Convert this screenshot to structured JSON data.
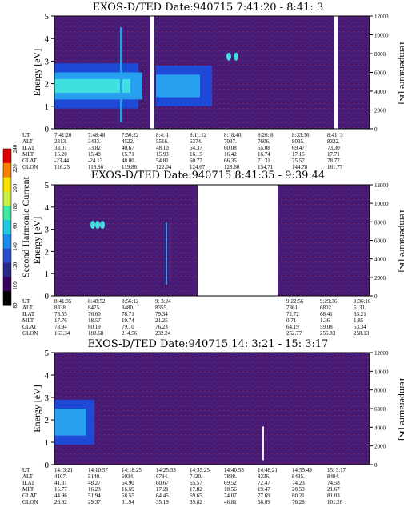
{
  "chart_data": [
    {
      "type": "heatmap",
      "title": "EXOS-D/TED   Date:940715  7:41:20 - 8:41: 3",
      "ylabel": "Energy [eV]",
      "y2label": "Temperature [K]",
      "ylim": [
        0,
        5
      ],
      "y_ticks": [
        "0",
        "1",
        "2",
        "3",
        "4",
        "5"
      ],
      "y2lim": [
        0,
        12000
      ],
      "y2_ticks": [
        "0",
        "2000",
        "4000",
        "6000",
        "8000",
        "10000",
        "12000"
      ],
      "table_labels": [
        "UT",
        "ALT",
        "ILAT",
        "MLT",
        "GLAT",
        "GLON"
      ],
      "columns": [
        {
          "UT": "7:41:20",
          "ALT": "2313.",
          "ILAT": "33.01",
          "MLT": "15.20",
          "GLAT": "-23.44",
          "GLON": "116.23"
        },
        {
          "UT": "7:48:48",
          "ALT": "3433.",
          "ILAT": "33.82",
          "MLT": "15.48",
          "GLAT": "-24.13",
          "GLON": "118.86"
        },
        {
          "UT": "7:56:22",
          "ALT": "4522.",
          "ILAT": "40.67",
          "MLT": "15.71",
          "GLAT": "48.00",
          "GLON": "119.86"
        },
        {
          "UT": "8:4: 1",
          "ALT": "5516.",
          "ILAT": "48.10",
          "MLT": "15.93",
          "GLAT": "54.81",
          "GLON": "122.04"
        },
        {
          "UT": "8:11:12",
          "ALT": "6374.",
          "ILAT": "54.37",
          "MLT": "16.15",
          "GLAT": "60.77",
          "GLON": "124.67"
        },
        {
          "UT": "8:18:40",
          "ALT": "7037.",
          "ILAT": "60.08",
          "MLT": "16.42",
          "GLAT": "66.35",
          "GLON": "128.60"
        },
        {
          "UT": "8:26: 8",
          "ALT": "7606.",
          "ILAT": "65.08",
          "MLT": "16.74",
          "GLAT": "71.31",
          "GLON": "134.71"
        },
        {
          "UT": "8:33:36",
          "ALT": "8035.",
          "ILAT": "69.47",
          "MLT": "17.15",
          "GLAT": "75.57",
          "GLON": "144.78"
        },
        {
          "UT": "8:41: 3",
          "ALT": "8322.",
          "ILAT": "73.30",
          "MLT": "17.71",
          "GLAT": "78.77",
          "GLON": "161.77"
        }
      ]
    },
    {
      "type": "heatmap",
      "title": "EXOS-D/TED   Date:940715  8:41:35 - 9:39:44",
      "ylabel": "Energy [eV]",
      "y2label": "Temperature [K]",
      "ylim": [
        0,
        5
      ],
      "y_ticks": [
        "0",
        "1",
        "2",
        "3",
        "4",
        "5"
      ],
      "y2lim": [
        0,
        12000
      ],
      "y2_ticks": [
        "0",
        "2000",
        "4000",
        "6000",
        "8000",
        "10000",
        "12000"
      ],
      "table_labels": [
        "UT",
        "ALT",
        "ILAT",
        "MLT",
        "GLAT",
        "GLON"
      ],
      "columns": [
        {
          "UT": "8:41:35",
          "ALT": "8338.",
          "ILAT": "73.55",
          "MLT": "17.76",
          "GLAT": "78.94",
          "GLON": "163.34"
        },
        {
          "UT": "8:48:52",
          "ALT": "8475.",
          "ILAT": "76.60",
          "MLT": "18.57",
          "GLAT": "80.19",
          "GLON": "188.68"
        },
        {
          "UT": "8:56:12",
          "ALT": "8480.",
          "ILAT": "78.71",
          "MLT": "19.74",
          "GLAT": "79.10",
          "GLON": "214.56"
        },
        {
          "UT": "9: 3:24",
          "ALT": "8355.",
          "ILAT": "79.34",
          "MLT": "21.25",
          "GLAT": "76.23",
          "GLON": "232.24"
        },
        {
          "UT": "9:22:56",
          "ALT": "7361.",
          "ILAT": "72.72",
          "MLT": "0.71",
          "GLAT": "64.19",
          "GLON": "252.77"
        },
        {
          "UT": "9:29:36",
          "ALT": "6802.",
          "ILAT": "68.41",
          "MLT": "1.36",
          "GLAT": "59.08",
          "GLON": "255.83"
        },
        {
          "UT": "9:36:16",
          "ALT": "6131.",
          "ILAT": "63.21",
          "MLT": "1.85",
          "GLAT": "53.34",
          "GLON": "258.13"
        }
      ]
    },
    {
      "type": "heatmap",
      "title": "EXOS-D/TED   Date:940715  14: 3:21 - 15: 3:17",
      "ylabel": "Energy [eV]",
      "y2label": "Temperature [K]",
      "ylim": [
        0,
        5
      ],
      "y_ticks": [
        "0",
        "1",
        "2",
        "3",
        "4",
        "5"
      ],
      "y2lim": [
        0,
        12000
      ],
      "y2_ticks": [
        "0",
        "2000",
        "4000",
        "6000",
        "8000",
        "10000",
        "12000"
      ],
      "table_labels": [
        "UT",
        "ALT",
        "ILAT",
        "MLT",
        "GLAT",
        "GLON"
      ],
      "columns": [
        {
          "UT": "14: 3:21",
          "ALT": "4107.",
          "ILAT": "41.31",
          "MLT": "15.77",
          "GLAT": "44.96",
          "GLON": "26.92"
        },
        {
          "UT": "14:10:57",
          "ALT": "5140.",
          "ILAT": "48.27",
          "MLT": "16.23",
          "GLAT": "51.94",
          "GLON": "29.37"
        },
        {
          "UT": "14:18:25",
          "ALT": "6034.",
          "ILAT": "54.90",
          "MLT": "16.69",
          "GLAT": "58.55",
          "GLON": "31.94"
        },
        {
          "UT": "14:25:53",
          "ALT": "6794.",
          "ILAT": "60.67",
          "MLT": "17.21",
          "GLAT": "64.45",
          "GLON": "35.19"
        },
        {
          "UT": "14:33:25",
          "ALT": "7420.",
          "ILAT": "65.57",
          "MLT": "17.82",
          "GLAT": "69.65",
          "GLON": "39.82"
        },
        {
          "UT": "14:40:53",
          "ALT": "7898.",
          "ILAT": "69.52",
          "MLT": "18.56",
          "GLAT": "74.07",
          "GLON": "46.81"
        },
        {
          "UT": "14:48:21",
          "ALT": "8236.",
          "ILAT": "72.47",
          "MLT": "19.47",
          "GLAT": "77.69",
          "GLON": "58.09"
        },
        {
          "UT": "14:55:49",
          "ALT": "8435.",
          "ILAT": "74.23",
          "MLT": "20.53",
          "GLAT": "80.21",
          "GLON": "76.28"
        },
        {
          "UT": "15: 3:17",
          "ALT": "8494.",
          "ILAT": "74.58",
          "MLT": "21.67",
          "GLAT": "81.03",
          "GLON": "101.26"
        }
      ]
    }
  ],
  "colorbar": {
    "label": "Second Harmonic Current",
    "ticks": [
      "80",
      "100",
      "120",
      "140",
      "160",
      "180",
      "200",
      "220",
      "240"
    ],
    "colors": [
      "#000000",
      "#3a0060",
      "#28288c",
      "#2a4cd0",
      "#1a8cf0",
      "#20c8e0",
      "#40e8a0",
      "#c8f040",
      "#f8e000",
      "#f88000",
      "#e00000"
    ]
  },
  "colors": {
    "background": "#4a1a6a",
    "dense": "#5a2a8a",
    "blue": "#1e4ad8",
    "lightblue": "#28a0f0",
    "cyan": "#40e0e0"
  }
}
